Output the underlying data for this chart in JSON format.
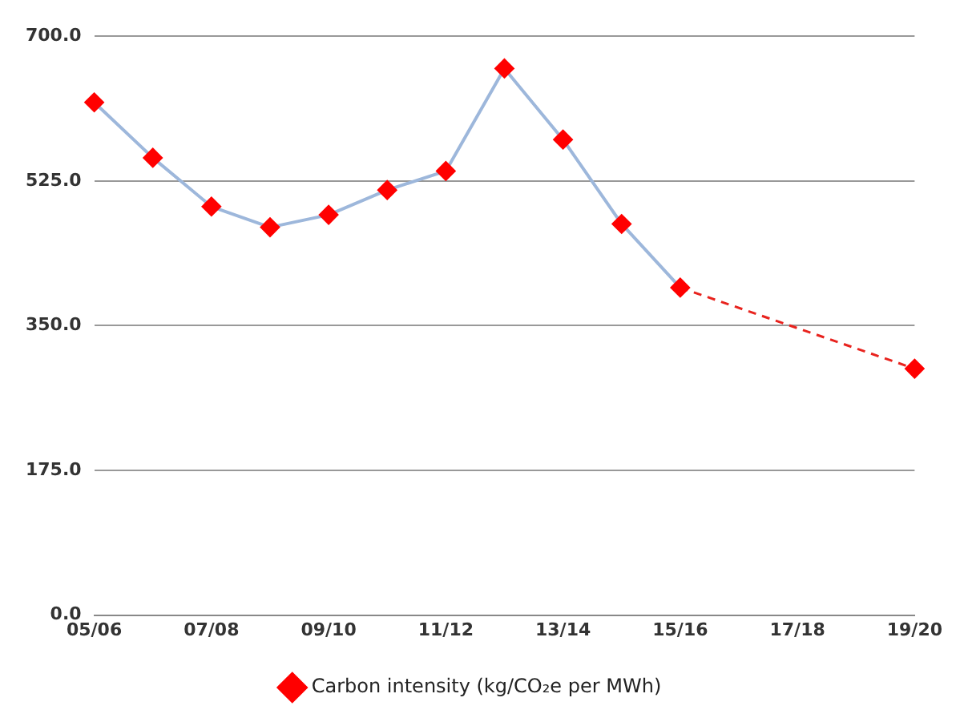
{
  "chart_data": {
    "type": "line",
    "categories": [
      "05/06",
      null,
      "07/08",
      null,
      "09/10",
      null,
      "11/12",
      null,
      "13/14",
      null,
      "15/16",
      null,
      "17/18",
      null,
      "19/20"
    ],
    "series": [
      {
        "name": "Carbon intensity (kg/CO₂e per MWh)",
        "color": "#9db7db",
        "colors": [
          "#ff0000",
          "#ff0000",
          "#ff0000",
          "#ff0000",
          "#ff0000",
          "#ff0000",
          "#ff0000",
          "#ff0000",
          "#ff0000",
          "#ff0000",
          "#ff0000",
          null,
          null,
          null,
          "#ff0000"
        ],
        "marker": "diamond",
        "line_style": "solid",
        "values": [
          620,
          553,
          494,
          469,
          484,
          514,
          537,
          661,
          575,
          473,
          396,
          null,
          null,
          null,
          298
        ]
      },
      {
        "color": "#e8231e",
        "marker": "none",
        "line_style": "dashed",
        "values": [
          null,
          null,
          null,
          null,
          null,
          null,
          null,
          null,
          null,
          null,
          396,
          null,
          null,
          null,
          298
        ]
      }
    ],
    "ylim": [
      0,
      700
    ],
    "yticks": [
      {
        "value": 0,
        "label": "0.0"
      },
      {
        "value": 175,
        "label": "175.0"
      },
      {
        "value": 350,
        "label": "350.0"
      },
      {
        "value": 525,
        "label": "525.0"
      },
      {
        "value": 700,
        "label": "700.0"
      }
    ],
    "grid": "y",
    "legend": "bottom"
  }
}
